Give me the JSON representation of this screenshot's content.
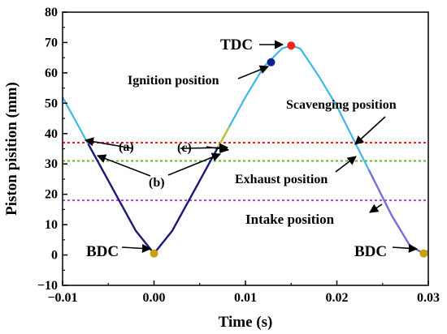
{
  "chart_data": {
    "type": "line",
    "xlabel": "Time (s)",
    "ylabel": "Piston pisition (mm)",
    "xlim": [
      -0.01,
      0.03
    ],
    "ylim": [
      -10,
      80
    ],
    "xticks": [
      -0.01,
      0.0,
      0.01,
      0.02,
      0.03
    ],
    "xtick_labels": [
      "−0.01",
      "0.00",
      "0.01",
      "0.02",
      "0.03"
    ],
    "yticks": [
      -10,
      0,
      10,
      20,
      30,
      40,
      50,
      60,
      70,
      80
    ],
    "ytick_labels": [
      "−10",
      "0",
      "10",
      "20",
      "30",
      "40",
      "50",
      "60",
      "70",
      "80"
    ],
    "grid": false,
    "series": [
      {
        "color": "#3fb8e6",
        "x": [
          -0.01,
          -0.008,
          -0.006,
          -0.004,
          -0.002,
          0.0,
          0.002,
          0.004,
          0.006,
          0.008,
          0.01,
          0.012,
          0.014,
          0.015,
          0.016,
          0.018,
          0.02,
          0.022,
          0.024,
          0.026,
          0.028,
          0.0295,
          0.03
        ],
        "y": [
          52,
          41,
          30,
          19,
          8,
          0.5,
          8,
          19,
          30,
          41,
          52,
          62,
          68,
          69,
          68,
          59,
          49,
          37,
          25,
          13,
          3,
          0.5,
          1.5
        ]
      }
    ],
    "segments": [
      {
        "x_start": -0.0072,
        "x_end": 0.0,
        "color": "#1f1a7a"
      },
      {
        "x_start": 0.0,
        "x_end": 0.007,
        "color": "#1f1a7a"
      },
      {
        "x_start": 0.007,
        "x_end": 0.0082,
        "color": "#b8c430"
      },
      {
        "x_start": 0.0235,
        "x_end": 0.0295,
        "color": "#7b6fd8"
      }
    ],
    "hlines": [
      {
        "y": 37,
        "color": "#ff1a1a"
      },
      {
        "y": 31,
        "color": "#5fb82a"
      },
      {
        "y": 18,
        "color": "#b040d8"
      }
    ],
    "markers": [
      {
        "x": 0.015,
        "y": 69,
        "color": "#ff2020"
      },
      {
        "x": 0.0128,
        "y": 63.5,
        "color": "#102090"
      },
      {
        "x": 0.0,
        "y": 0.5,
        "color": "#c8a010"
      },
      {
        "x": 0.0295,
        "y": 0.5,
        "color": "#c8a010"
      }
    ],
    "annotations": [
      {
        "text": "TDC",
        "size": 19
      },
      {
        "text": "Ignition position",
        "size": 16
      },
      {
        "text": "Scavenging position",
        "size": 16
      },
      {
        "text": "Exhaust position",
        "size": 16
      },
      {
        "text": "Intake position",
        "size": 17
      },
      {
        "text": "BDC",
        "size": 19
      },
      {
        "text": "BDC",
        "size": 19
      },
      {
        "text": "(a)",
        "size": 16
      },
      {
        "text": "(b)",
        "size": 16
      },
      {
        "text": "(c)",
        "size": 16
      }
    ]
  }
}
